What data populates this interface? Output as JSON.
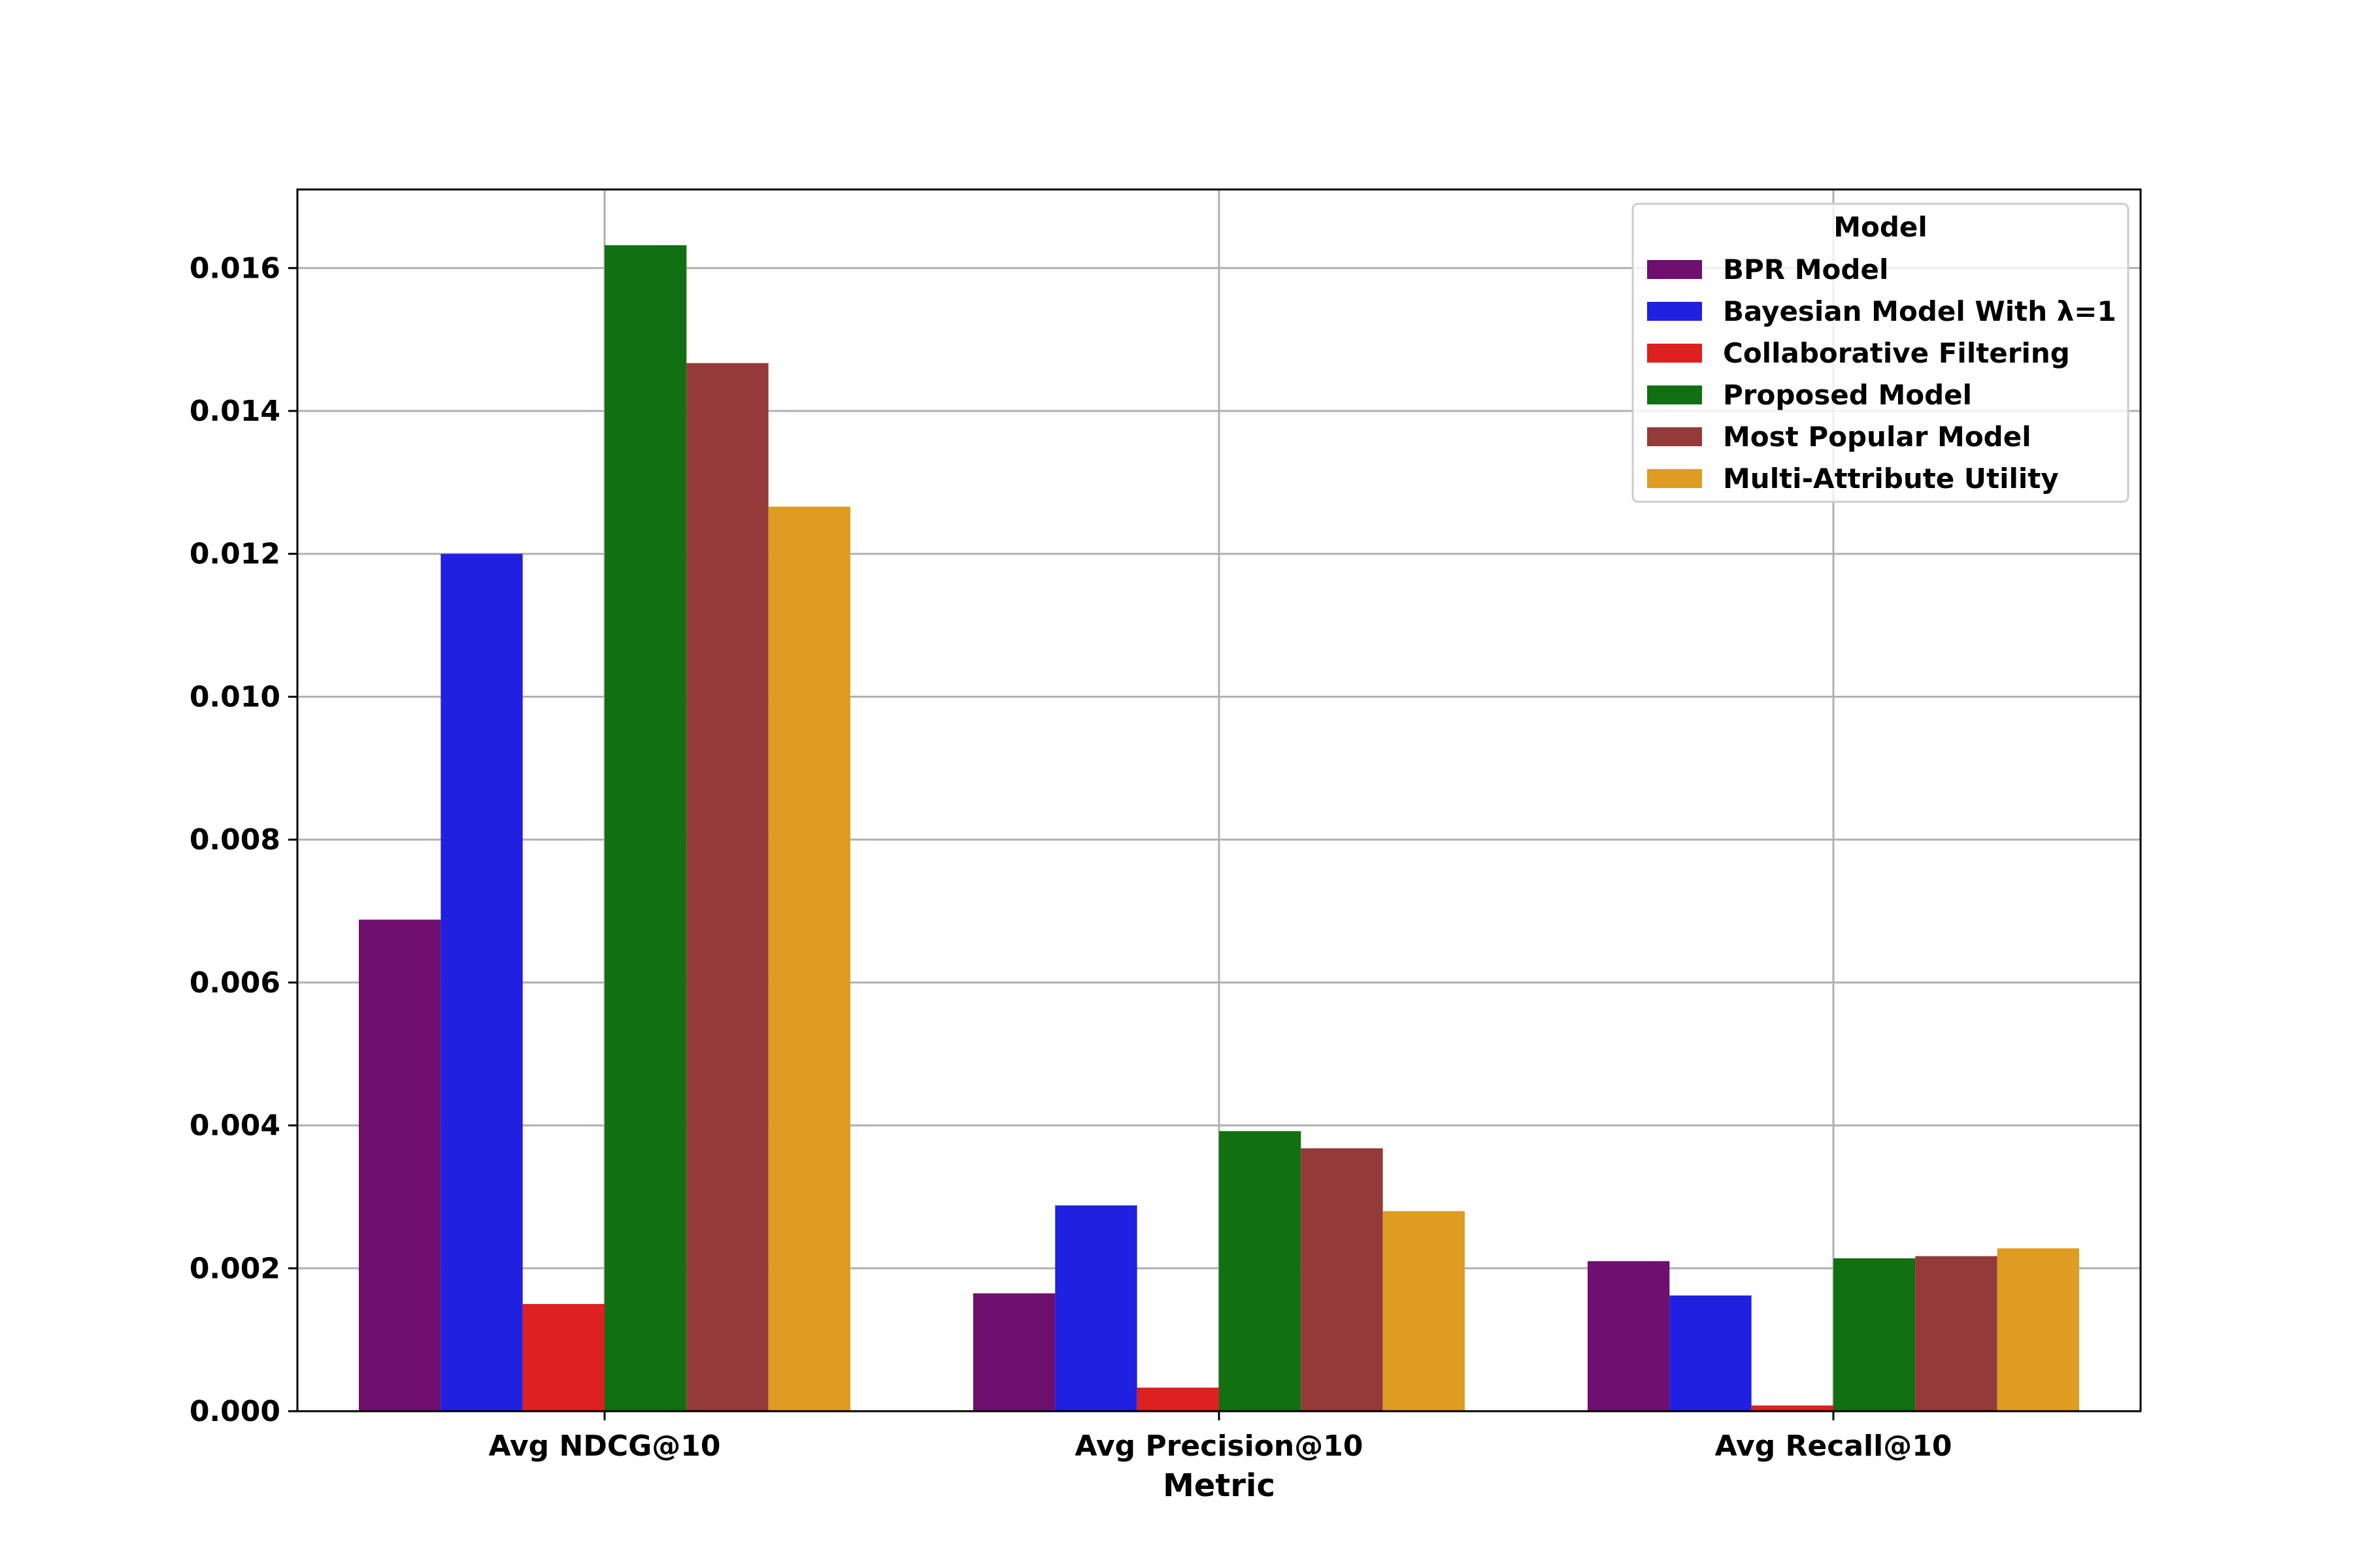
{
  "chart_data": {
    "type": "bar",
    "title": "",
    "xlabel": "Metric",
    "ylabel": "",
    "categories": [
      "Avg NDCG@10",
      "Avg Precision@10",
      "Avg Recall@10"
    ],
    "ylim": [
      0,
      0.0171
    ],
    "yticks": [
      "0.000",
      "0.002",
      "0.004",
      "0.006",
      "0.008",
      "0.010",
      "0.012",
      "0.014",
      "0.016"
    ],
    "grid": true,
    "legend": {
      "title": "Model",
      "position": "top-right"
    },
    "series": [
      {
        "name": "BPR Model",
        "color": "#6f0f6f",
        "values": [
          0.00688,
          0.00165,
          0.0021
        ]
      },
      {
        "name": "Bayesian Model With λ=1",
        "color": "#2020e0",
        "values": [
          0.012,
          0.00288,
          0.00162
        ]
      },
      {
        "name": "Collaborative Filtering",
        "color": "#dd2020",
        "values": [
          0.0015,
          0.00033,
          8e-05
        ]
      },
      {
        "name": "Proposed Model",
        "color": "#117011",
        "values": [
          0.01632,
          0.00392,
          0.00214
        ]
      },
      {
        "name": "Most Popular Model",
        "color": "#943a3a",
        "values": [
          0.01467,
          0.00368,
          0.00217
        ]
      },
      {
        "name": "Multi-Attribute Utility",
        "color": "#df9c22",
        "values": [
          0.01266,
          0.0028,
          0.00228
        ]
      }
    ]
  }
}
